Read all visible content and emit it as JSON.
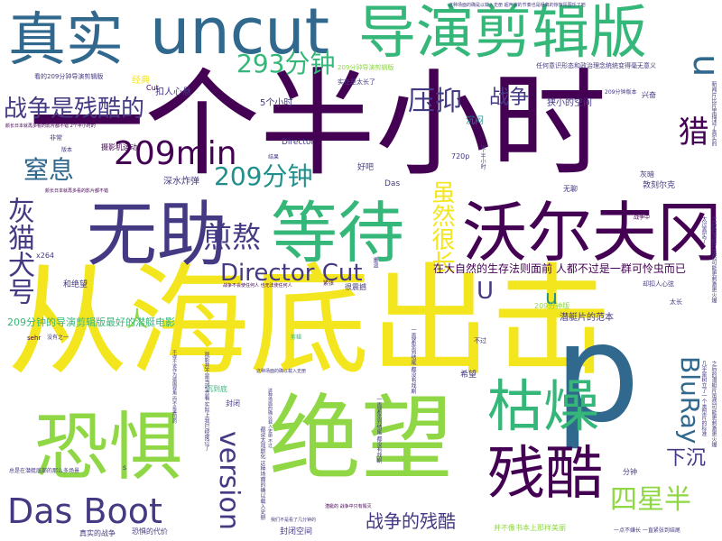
{
  "palette": {
    "yellow": "#f4e61e",
    "lightgreen": "#8fd744",
    "green": "#35b779",
    "teal": "#21908d",
    "blue": "#31688e",
    "indigo": "#443a83",
    "purple": "#440154"
  },
  "words": [
    {
      "text": "一个半小时",
      "color": "purple"
    },
    {
      "text": "从海底出击",
      "color": "yellow"
    },
    {
      "text": "绝望",
      "color": "lightgreen"
    },
    {
      "text": "恐惧",
      "color": "lightgreen"
    },
    {
      "text": "沃尔夫冈",
      "color": "purple"
    },
    {
      "text": "等待",
      "color": "green"
    },
    {
      "text": "无助",
      "color": "indigo"
    },
    {
      "text": "导演剪辑版",
      "color": "green"
    },
    {
      "text": "真实",
      "color": "blue"
    },
    {
      "text": "uncut",
      "color": "blue"
    },
    {
      "text": "p",
      "color": "blue"
    },
    {
      "text": "残酷",
      "color": "purple"
    },
    {
      "text": "枯燥",
      "color": "green"
    },
    {
      "text": "209min",
      "color": "purple"
    },
    {
      "text": "Das Boot",
      "color": "indigo"
    },
    {
      "text": "灰猫犬号",
      "color": "indigo"
    },
    {
      "text": "version",
      "color": "indigo"
    },
    {
      "text": "煎熬",
      "color": "indigo"
    },
    {
      "text": "293分钟",
      "color": "green"
    },
    {
      "text": "战争是残酷的",
      "color": "indigo"
    },
    {
      "text": "209分钟",
      "color": "teal"
    },
    {
      "text": "压抑",
      "color": "indigo"
    },
    {
      "text": "Director Cut",
      "color": "indigo"
    },
    {
      "text": "四星半",
      "color": "lightgreen"
    },
    {
      "text": "窒息",
      "color": "blue"
    },
    {
      "text": "虽然很长",
      "color": "yellow"
    },
    {
      "text": "猎",
      "color": "purple"
    },
    {
      "text": "BluRay",
      "color": "blue"
    },
    {
      "text": "战争",
      "color": "indigo"
    },
    {
      "text": "战争的残酷",
      "color": "indigo"
    },
    {
      "text": "下沉",
      "color": "indigo"
    },
    {
      "text": "u",
      "color": "blue"
    },
    {
      "text": "U",
      "color": "indigo"
    },
    {
      "text": "人",
      "color": "lightgreen"
    },
    {
      "text": "u",
      "color": "teal"
    },
    {
      "text": "在大自然的生存法则面前 人都不过是一群可怜虫而已",
      "color": "purple"
    },
    {
      "text": "209分钟的导演剪辑版最好的潜艇电影",
      "color": "green"
    },
    {
      "text": "5个小时",
      "color": "indigo"
    },
    {
      "text": "狭小的空间",
      "color": "indigo"
    },
    {
      "text": "扣人心悬",
      "color": "indigo"
    },
    {
      "text": "经典",
      "color": "yellow"
    },
    {
      "text": "看的209分钟导演剪辑版",
      "color": "indigo"
    },
    {
      "text": "实在是太长了",
      "color": "indigo"
    },
    {
      "text": "209分钟导演剪辑版",
      "color": "lightgreen"
    },
    {
      "text": "任何意识形态和政治理念统统变得毫无意义",
      "color": "indigo"
    },
    {
      "text": "这种场面的确是以载入史册 超声波的节奏也是经典的惊悚氛围乐了吧",
      "color": "indigo"
    },
    {
      "text": "Cut",
      "color": "purple"
    },
    {
      "text": "沉闷",
      "color": "teal"
    },
    {
      "text": "兴奋",
      "color": "indigo"
    },
    {
      "text": "非常",
      "color": "indigo"
    },
    {
      "text": "版本",
      "color": "indigo"
    },
    {
      "text": "摄影机运动",
      "color": "purple"
    },
    {
      "text": "Director",
      "color": "indigo"
    },
    {
      "text": "好吧",
      "color": "indigo"
    },
    {
      "text": "720p",
      "color": "indigo"
    },
    {
      "text": "灰暗",
      "color": "indigo"
    },
    {
      "text": "深水炸弹",
      "color": "indigo"
    },
    {
      "text": "Das",
      "color": "indigo"
    },
    {
      "text": "敦刻尔克",
      "color": "indigo"
    },
    {
      "text": "无聊",
      "color": "indigo"
    },
    {
      "text": "x264",
      "color": "indigo"
    },
    {
      "text": "和绝望",
      "color": "indigo"
    },
    {
      "text": "sehr",
      "color": "purple"
    },
    {
      "text": "却扣人心弦",
      "color": "indigo"
    },
    {
      "text": "太长",
      "color": "indigo"
    },
    {
      "text": "潜艇片的范本",
      "color": "indigo"
    },
    {
      "text": "希望",
      "color": "indigo"
    },
    {
      "text": "剪辑",
      "color": "green"
    },
    {
      "text": "不过",
      "color": "indigo"
    },
    {
      "text": "很震撼",
      "color": "indigo"
    },
    {
      "text": "沉到底",
      "color": "green"
    },
    {
      "text": "封闭",
      "color": "indigo"
    },
    {
      "text": "s",
      "color": "indigo"
    },
    {
      "text": "分钟",
      "color": "indigo"
    },
    {
      "text": "真实的战争",
      "color": "indigo"
    },
    {
      "text": "恐惧的代价",
      "color": "indigo"
    },
    {
      "text": "封闭空间",
      "color": "indigo"
    },
    {
      "text": "并不像书本上那样美丽",
      "color": "lightgreen"
    },
    {
      "text": "一点不嫌长 一直紧张到结尾",
      "color": "indigo"
    },
    {
      "text": "209分钟版",
      "color": "lightgreen"
    },
    {
      "text": "209分钟版本",
      "color": "indigo"
    },
    {
      "text": "结果",
      "color": "indigo"
    },
    {
      "text": "战争中",
      "color": "purple"
    },
    {
      "text": "没有之一",
      "color": "indigo"
    },
    {
      "text": "紧张",
      "color": "purple"
    },
    {
      "text": "一直紧张到结尾 都没有戏剧",
      "color": "indigo"
    },
    {
      "text": "3个半小时",
      "color": "indigo"
    },
    {
      "text": "重温",
      "color": "indigo"
    },
    {
      "text": "战争不会使任何人 也无法使任何人",
      "color": "purple"
    },
    {
      "text": "颜长日本就再多看的影片都不错",
      "color": "purple"
    },
    {
      "text": "这种场面的确以载入史册",
      "color": "indigo"
    },
    {
      "text": "几乎是树立了一个类型片的标准",
      "color": "indigo"
    },
    {
      "text": "之后的潜艇片虽然可能更刺激更火爆",
      "color": "indigo"
    },
    {
      "text": "新闻片比片里描述了真实的",
      "color": "indigo"
    },
    {
      "text": "太过真实了",
      "color": "indigo"
    },
    {
      "text": "之后的潜艇片虽然可能更刺激更火爆",
      "color": "indigo"
    },
    {
      "text": "总是在潜艇底部的那么多场景",
      "color": "indigo"
    },
    {
      "text": "观影并不是当初去看 实际上我已经度过了",
      "color": "indigo"
    },
    {
      "text": "我们不是看了几分钟的",
      "color": "indigo"
    },
    {
      "text": "都说太戏剧化 这种场面的确以载入史册",
      "color": "indigo"
    },
    {
      "text": "颜长日本就再多看的影片都不错 2个半小时的",
      "color": "purple"
    },
    {
      "text": "潜艇的 战争中只有毁灭",
      "color": "purple"
    },
    {
      "text": "这种场面的确以载入史册 不过",
      "color": "indigo"
    },
    {
      "text": "一直紧张到结尾 都没有戏剧",
      "color": "indigo"
    },
    {
      "text": "不得不说作为德国视角 而不是美国的",
      "color": "indigo"
    }
  ]
}
